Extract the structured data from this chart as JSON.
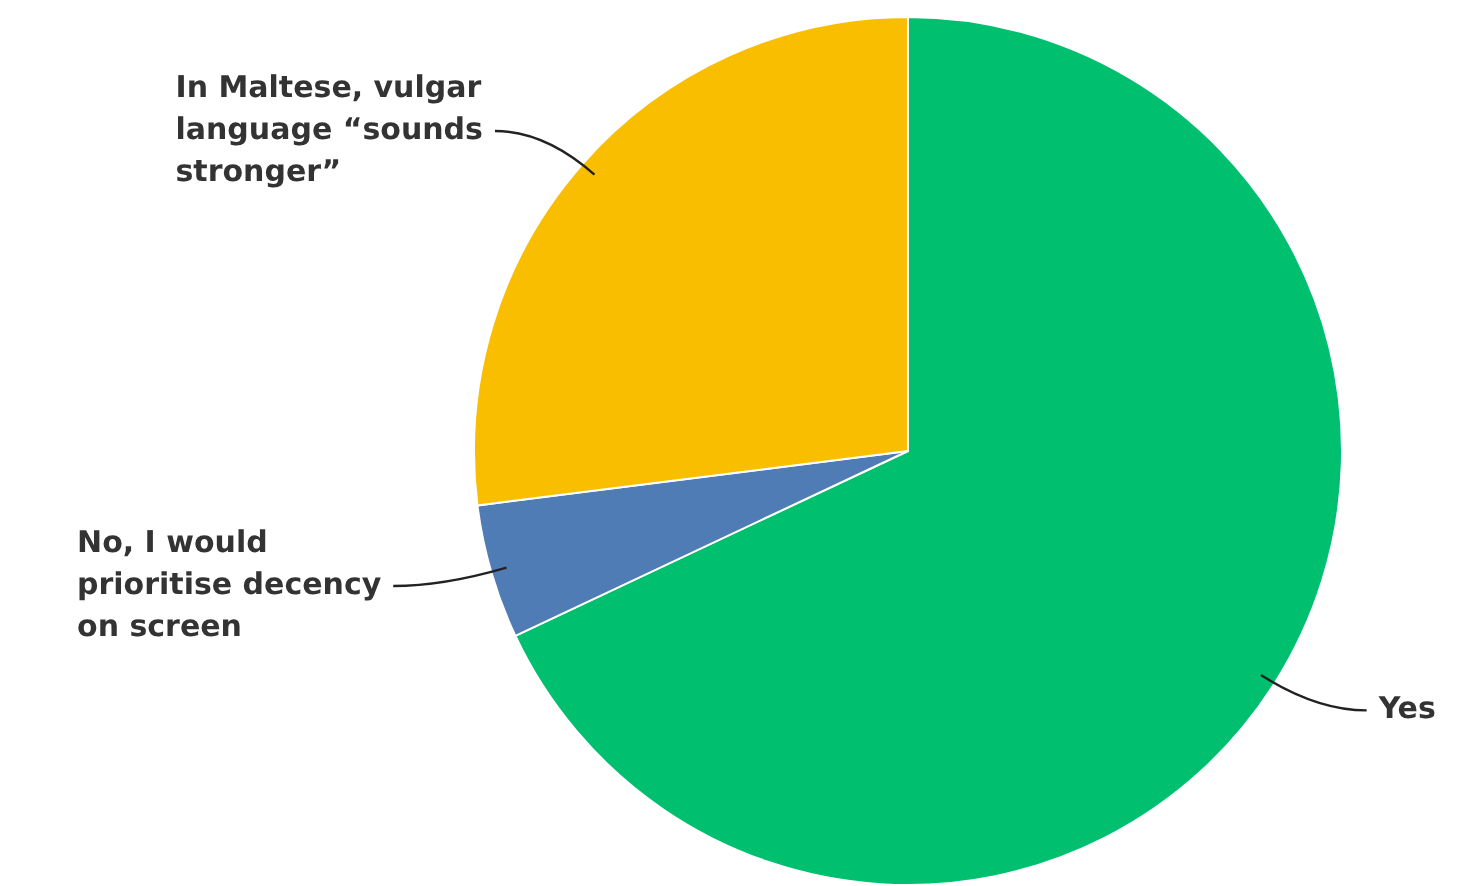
{
  "chart_data": {
    "type": "pie",
    "categories": [
      "Yes",
      "No, I would prioritise decency on screen",
      "In Maltese, vulgar language “sounds stronger”"
    ],
    "values": [
      68,
      5,
      27
    ],
    "colors": [
      "#00bf6f",
      "#507cb6",
      "#f9be00"
    ],
    "legend": false
  }
}
